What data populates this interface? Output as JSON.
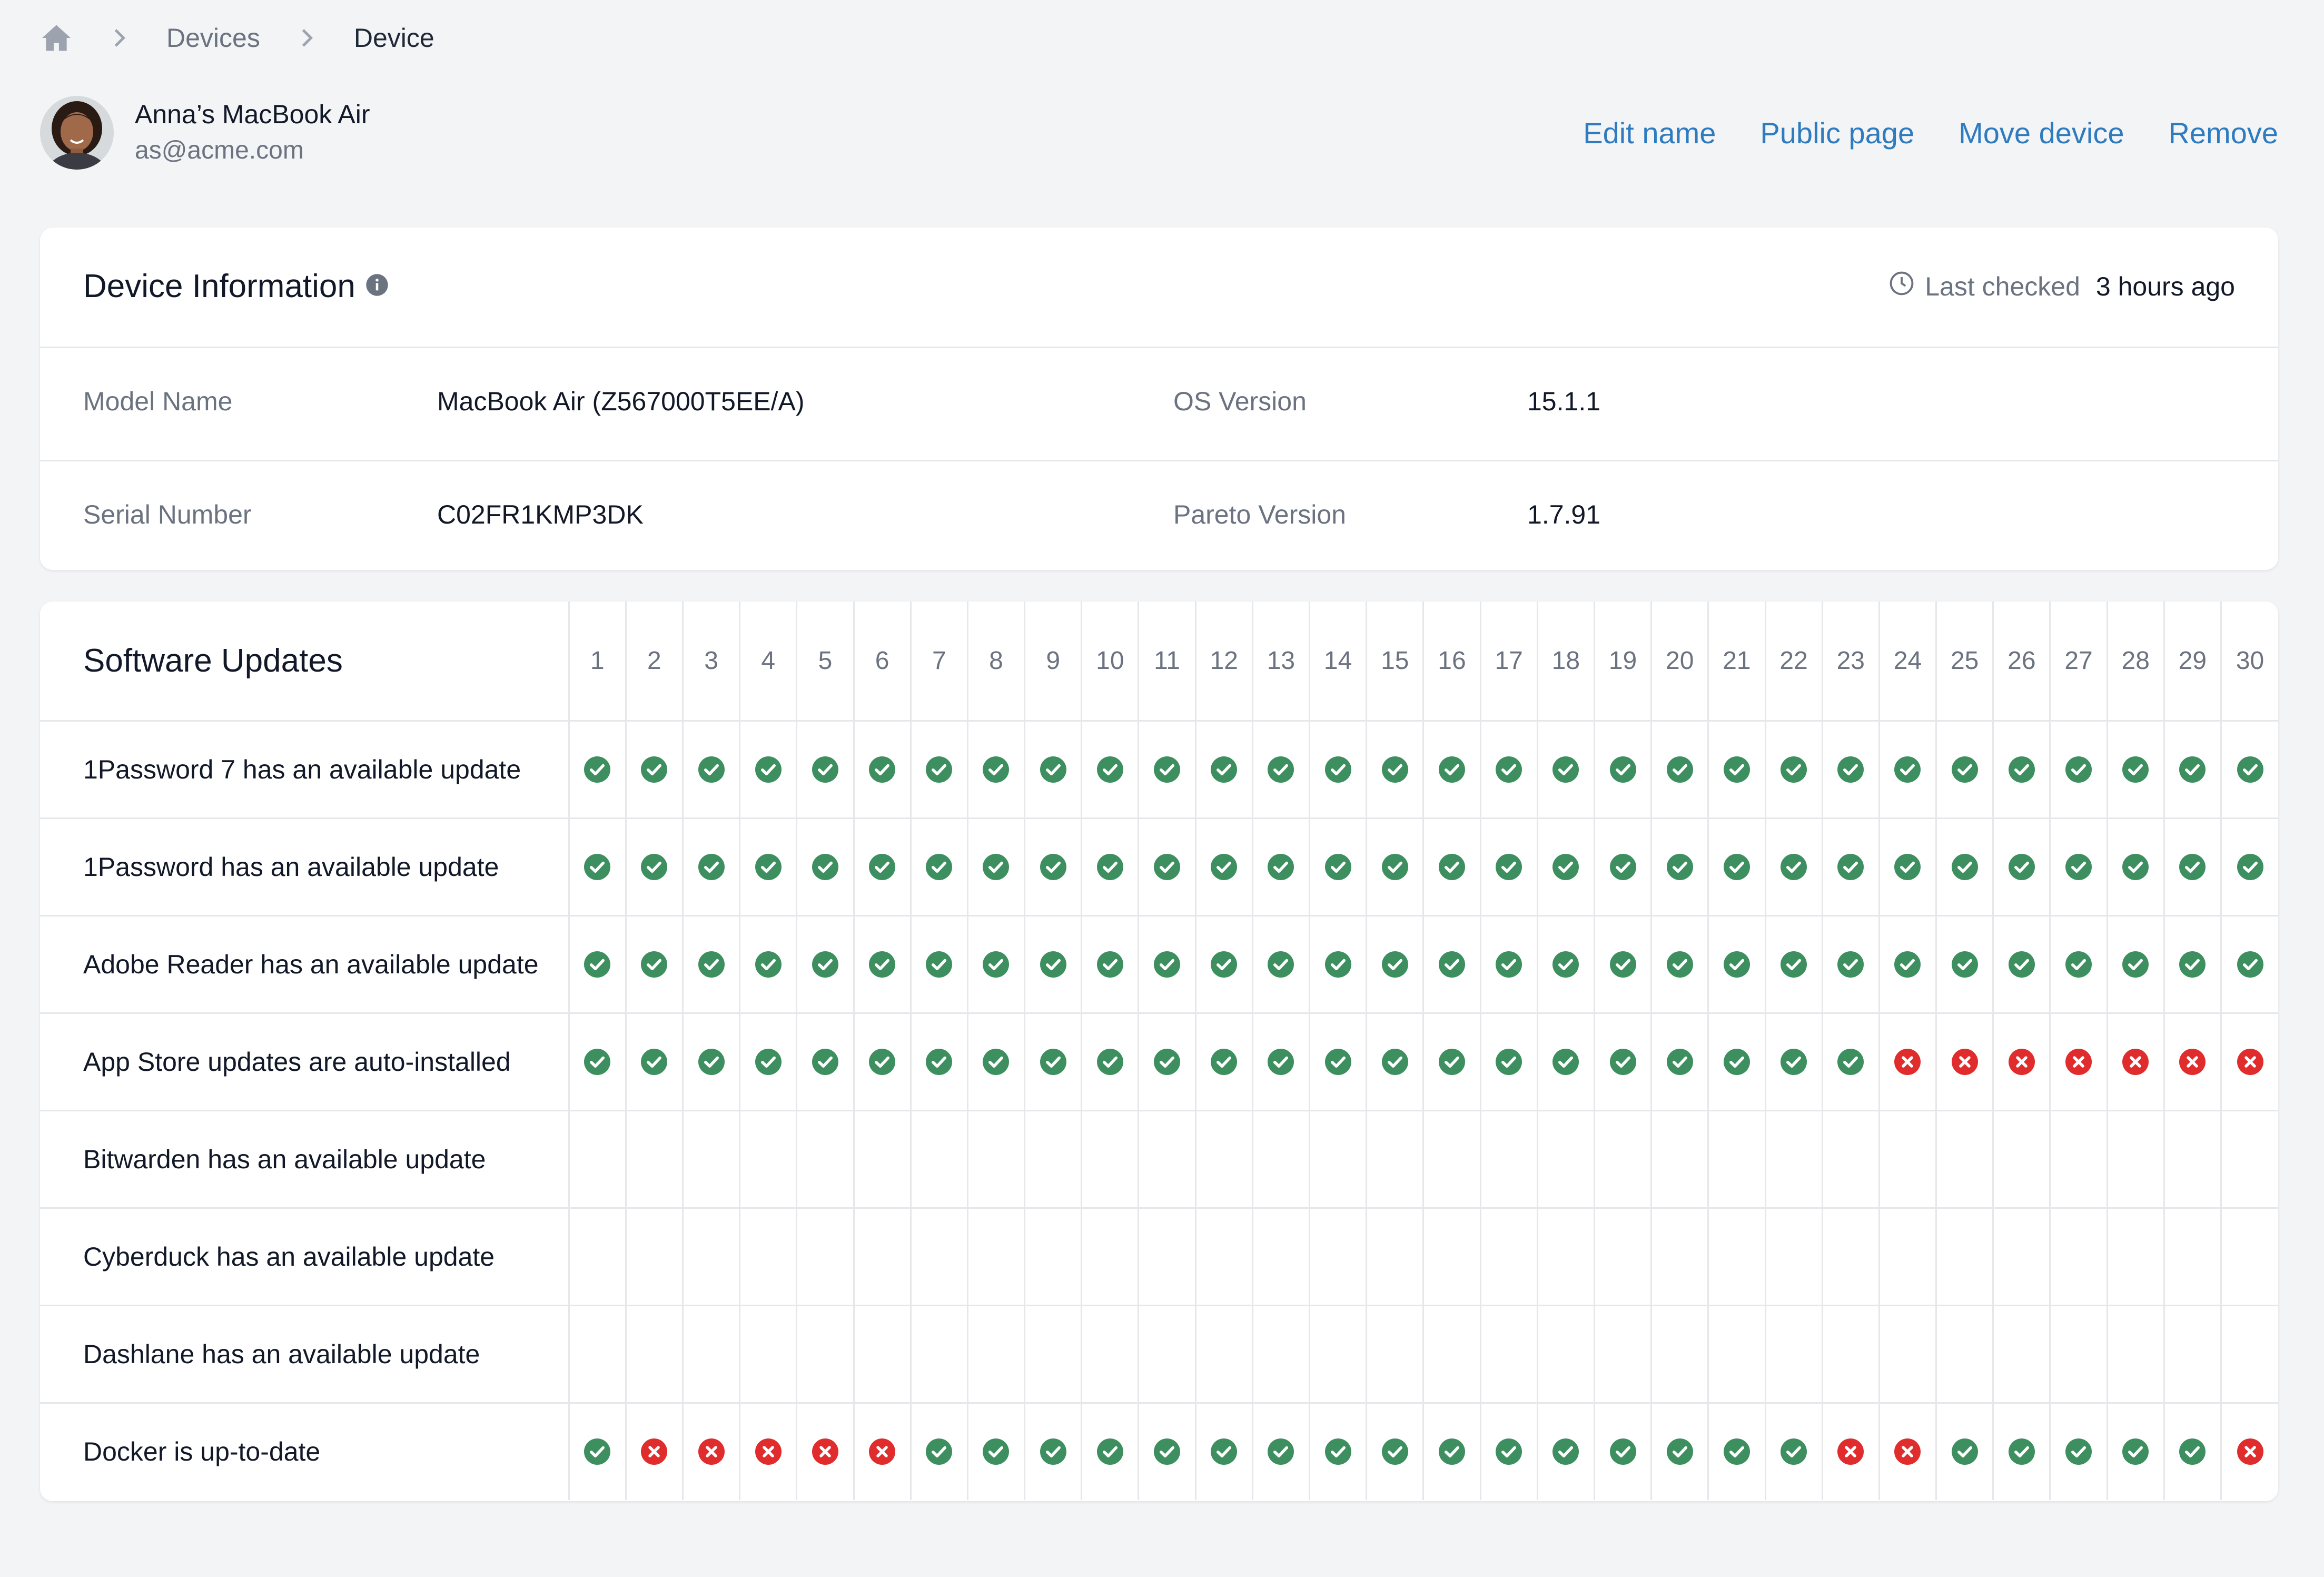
{
  "breadcrumb": {
    "home_icon": "home-icon",
    "items": [
      "Devices",
      "Device"
    ]
  },
  "device": {
    "name": "Anna’s MacBook Air",
    "email": "as@acme.com"
  },
  "actions": [
    "Edit name",
    "Public page",
    "Move device",
    "Remove"
  ],
  "device_info": {
    "title": "Device Information",
    "last_checked_label": "Last checked",
    "last_checked_value": "3 hours ago",
    "fields": {
      "model_name_label": "Model Name",
      "model_name_value": "MacBook Air (Z567000T5EE/A)",
      "os_version_label": "OS Version",
      "os_version_value": "15.1.1",
      "serial_label": "Serial Number",
      "serial_value": "C02FR1KMP3DK",
      "pareto_label": "Pareto Version",
      "pareto_value": "1.7.91"
    }
  },
  "software_updates": {
    "title": "Software Updates",
    "days": [
      "1",
      "2",
      "3",
      "4",
      "5",
      "6",
      "7",
      "8",
      "9",
      "10",
      "11",
      "12",
      "13",
      "14",
      "15",
      "16",
      "17",
      "18",
      "19",
      "20",
      "21",
      "22",
      "23",
      "24",
      "25",
      "26",
      "27",
      "28",
      "29",
      "30"
    ],
    "rows": [
      {
        "label": "1Password 7 has an available update",
        "status": "pppppppppppppppppppppppppppppp"
      },
      {
        "label": "1Password has an available update",
        "status": "pppppppppppppppppppppppppppppp"
      },
      {
        "label": "Adobe Reader has an available update",
        "status": "pppppppppppppppppppppppppppppp"
      },
      {
        "label": "App Store updates are auto-installed",
        "status": "pppppppppppppppppppppppfffffff"
      },
      {
        "label": "Bitwarden has an available update",
        "status": "------------------------------"
      },
      {
        "label": "Cyberduck has an available update",
        "status": "------------------------------"
      },
      {
        "label": "Dashlane has an available update",
        "status": "------------------------------"
      },
      {
        "label": "Docker is up-to-date",
        "status": "pfffffppppppppppppppppffpppppf"
      }
    ],
    "status_colors": {
      "pass": "#3d8f60",
      "fail": "#e02c2c"
    }
  }
}
